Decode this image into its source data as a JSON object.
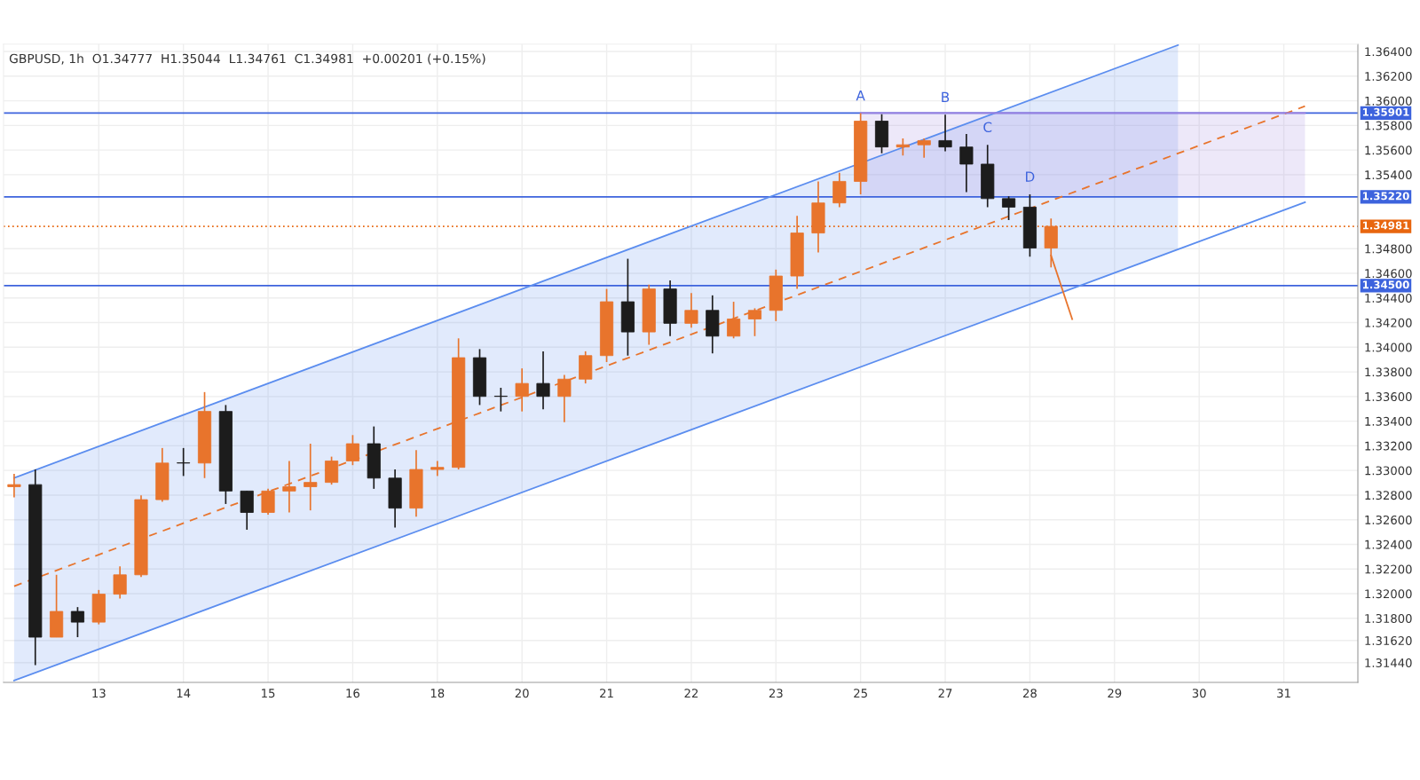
{
  "chart_data": {
    "type": "candlestick",
    "title": "GBPUSD, 1h  O1.34777  H1.35044  L1.34761  C1.34981  +0.00201 (+0.15%)",
    "categories": [
      null,
      null,
      null,
      null,
      "13",
      null,
      null,
      null,
      "14",
      null,
      null,
      null,
      "15",
      null,
      null,
      null,
      "16",
      null,
      null,
      null,
      "18",
      null,
      null,
      null,
      "20",
      null,
      null,
      null,
      "21",
      null,
      null,
      null,
      "22",
      null,
      null,
      null,
      "23",
      null,
      null,
      null,
      "25",
      null,
      null,
      null,
      "27",
      null,
      null,
      null,
      "28",
      null,
      null,
      null,
      "29",
      null,
      null,
      null,
      "30",
      null,
      null,
      null,
      "31",
      null,
      null,
      null
    ],
    "ohlc": [
      [
        1.32868,
        1.32973,
        1.32781,
        1.32885
      ],
      [
        1.32885,
        1.33008,
        1.3142,
        1.31647
      ],
      [
        1.31647,
        1.32153,
        1.31647,
        1.31856
      ],
      [
        1.31856,
        1.31891,
        1.31647,
        1.31769
      ],
      [
        1.31769,
        1.3203,
        1.31751,
        1.31996
      ],
      [
        1.31996,
        1.32222,
        1.31961,
        1.32153
      ],
      [
        1.32153,
        1.32798,
        1.32135,
        1.32763
      ],
      [
        1.32763,
        1.33182,
        1.32746,
        1.3306
      ],
      [
        1.3306,
        1.33182,
        1.32955,
        1.3306
      ],
      [
        1.3306,
        1.33636,
        1.32938,
        1.33479
      ],
      [
        1.33479,
        1.33531,
        1.32728,
        1.32833
      ],
      [
        1.32833,
        1.32833,
        1.32519,
        1.32659
      ],
      [
        1.32659,
        1.32851,
        1.32641,
        1.32833
      ],
      [
        1.32833,
        1.33077,
        1.32659,
        1.32868
      ],
      [
        1.32868,
        1.33217,
        1.32676,
        1.32903
      ],
      [
        1.32903,
        1.33112,
        1.32885,
        1.33077
      ],
      [
        1.33077,
        1.33287,
        1.33043,
        1.33217
      ],
      [
        1.33217,
        1.33357,
        1.32851,
        1.32938
      ],
      [
        1.32938,
        1.33008,
        1.32537,
        1.32694
      ],
      [
        1.32694,
        1.33165,
        1.32624,
        1.33008
      ],
      [
        1.33008,
        1.33077,
        1.32955,
        1.33025
      ],
      [
        1.33025,
        1.34072,
        1.33008,
        1.33915
      ],
      [
        1.33915,
        1.33985,
        1.33531,
        1.33601
      ],
      [
        1.33601,
        1.33671,
        1.33479,
        1.33601
      ],
      [
        1.33601,
        1.33828,
        1.33479,
        1.33706
      ],
      [
        1.33706,
        1.33967,
        1.33496,
        1.33601
      ],
      [
        1.33601,
        1.33775,
        1.33392,
        1.33741
      ],
      [
        1.33741,
        1.33967,
        1.33706,
        1.33932
      ],
      [
        1.33932,
        1.34473,
        1.3388,
        1.34369
      ],
      [
        1.34369,
        1.34718,
        1.33932,
        1.34124
      ],
      [
        1.34124,
        1.34508,
        1.3402,
        1.34473
      ],
      [
        1.34473,
        1.34543,
        1.3409,
        1.34194
      ],
      [
        1.34194,
        1.34439,
        1.34159,
        1.34299
      ],
      [
        1.34299,
        1.34421,
        1.3395,
        1.3409
      ],
      [
        1.3409,
        1.34369,
        1.34072,
        1.34229
      ],
      [
        1.34229,
        1.34316,
        1.3409,
        1.34299
      ],
      [
        1.34299,
        1.3463,
        1.34212,
        1.34578
      ],
      [
        1.34578,
        1.35067,
        1.34473,
        1.34927
      ],
      [
        1.34927,
        1.35346,
        1.3477,
        1.35171
      ],
      [
        1.35171,
        1.35416,
        1.35137,
        1.35346
      ],
      [
        1.35346,
        1.359,
        1.35241,
        1.35835
      ],
      [
        1.35835,
        1.3589,
        1.35573,
        1.35625
      ],
      [
        1.35625,
        1.35695,
        1.35555,
        1.35643
      ],
      [
        1.35643,
        1.35695,
        1.35538,
        1.35677
      ],
      [
        1.35677,
        1.35887,
        1.3559,
        1.35625
      ],
      [
        1.35625,
        1.3573,
        1.35259,
        1.35486
      ],
      [
        1.35486,
        1.35643,
        1.35137,
        1.35206
      ],
      [
        1.35206,
        1.35224,
        1.35032,
        1.35137
      ],
      [
        1.35137,
        1.35241,
        1.34735,
        1.34805
      ],
      [
        1.34805,
        1.35044,
        1.34648,
        1.34981
      ],
      null,
      null,
      null,
      null,
      null,
      null,
      null,
      null,
      null,
      null,
      null,
      null,
      null,
      null
    ],
    "colors": [
      "#e8742c",
      "#1c1c1c",
      "#e8742c",
      "#1c1c1c",
      "#e8742c",
      "#e8742c",
      "#e8742c",
      "#e8742c",
      "#1c1c1c",
      "#e8742c",
      "#1c1c1c",
      "#1c1c1c",
      "#e8742c",
      "#e8742c",
      "#e8742c",
      "#e8742c",
      "#e8742c",
      "#1c1c1c",
      "#1c1c1c",
      "#e8742c",
      "#e8742c",
      "#e8742c",
      "#1c1c1c",
      "#1c1c1c",
      "#e8742c",
      "#1c1c1c",
      "#e8742c",
      "#e8742c",
      "#e8742c",
      "#1c1c1c",
      "#e8742c",
      "#1c1c1c",
      "#e8742c",
      "#1c1c1c",
      "#e8742c",
      "#e8742c",
      "#e8742c",
      "#e8742c",
      "#e8742c",
      "#e8742c",
      "#e8742c",
      "#1c1c1c",
      "#e8742c",
      "#e8742c",
      "#1c1c1c",
      "#1c1c1c",
      "#1c1c1c",
      "#1c1c1c",
      "#1c1c1c",
      "#e8742c",
      null,
      null,
      null,
      null,
      null,
      null,
      null,
      null,
      null,
      null,
      null,
      null,
      null,
      null
    ],
    "value_labels": [
      null,
      null,
      null,
      null,
      null,
      null,
      null,
      null,
      null,
      null,
      null,
      null,
      null,
      null,
      null,
      null,
      null,
      null,
      null,
      null,
      null,
      null,
      null,
      null,
      null,
      null,
      null,
      null,
      null,
      null,
      null,
      null,
      null,
      null,
      null,
      null,
      null,
      null,
      null,
      null,
      "A",
      null,
      null,
      null,
      "B",
      null,
      "C",
      null,
      "D",
      null,
      null,
      null,
      null,
      null,
      null,
      null,
      null,
      null,
      null,
      null,
      null,
      null,
      null,
      null
    ],
    "series": [
      {
        "type": "line",
        "color": "#5b8def",
        "values": [
          1.3294,
          null,
          null,
          null,
          null,
          null,
          null,
          null,
          null,
          null,
          null,
          null,
          null,
          null,
          null,
          null,
          null,
          null,
          null,
          null,
          null,
          null,
          null,
          null,
          null,
          null,
          null,
          null,
          null,
          null,
          null,
          null,
          null,
          null,
          null,
          null,
          null,
          null,
          null,
          null,
          null,
          null,
          null,
          null,
          null,
          null,
          null,
          null,
          null,
          null,
          null,
          null,
          null,
          null,
          null,
          1.36452,
          null,
          null,
          null,
          null,
          null,
          null,
          null,
          null
        ],
        "upper": [
          1.3294,
          null,
          null,
          null,
          null,
          null,
          null,
          null,
          null,
          null,
          null,
          null,
          null,
          null,
          null,
          null,
          null,
          null,
          null,
          null,
          null,
          null,
          null,
          null,
          null,
          null,
          null,
          null,
          null,
          null,
          null,
          null,
          null,
          null,
          null,
          null,
          null,
          null,
          null,
          null,
          null,
          null,
          null,
          null,
          null,
          null,
          null,
          null,
          null,
          null,
          null,
          null,
          null,
          null,
          null,
          1.36452,
          null,
          null,
          null,
          null,
          null,
          null,
          null,
          null
        ],
        "lower": [
          1.31295,
          null,
          null,
          null,
          null,
          null,
          null,
          null,
          null,
          null,
          null,
          null,
          null,
          null,
          null,
          null,
          null,
          null,
          null,
          null,
          null,
          null,
          null,
          null,
          null,
          null,
          null,
          null,
          null,
          null,
          null,
          null,
          null,
          null,
          null,
          null,
          null,
          null,
          null,
          null,
          null,
          null,
          null,
          null,
          null,
          null,
          null,
          null,
          null,
          null,
          null,
          null,
          null,
          null,
          null,
          1.34795,
          null,
          null,
          null,
          null,
          null,
          null,
          null,
          null
        ]
      },
      {
        "type": "line",
        "color": "#5b8def",
        "values": [
          1.31295,
          null,
          null,
          null,
          null,
          null,
          null,
          null,
          null,
          null,
          null,
          null,
          null,
          null,
          null,
          null,
          null,
          null,
          null,
          null,
          null,
          null,
          null,
          null,
          null,
          null,
          null,
          null,
          null,
          null,
          null,
          null,
          null,
          null,
          null,
          null,
          null,
          null,
          null,
          null,
          null,
          null,
          null,
          null,
          null,
          null,
          null,
          null,
          null,
          null,
          null,
          null,
          null,
          null,
          null,
          null,
          null,
          null,
          null,
          null,
          null,
          1.35176,
          null,
          null
        ]
      },
      {
        "type": "line",
        "color": "#e8742c",
        "line_style": "dashed",
        "values": [
          1.32061,
          null,
          null,
          null,
          null,
          null,
          null,
          null,
          null,
          null,
          null,
          null,
          null,
          null,
          null,
          null,
          null,
          null,
          null,
          null,
          null,
          null,
          null,
          null,
          null,
          null,
          null,
          null,
          null,
          null,
          null,
          null,
          null,
          null,
          null,
          null,
          null,
          null,
          null,
          null,
          null,
          null,
          null,
          null,
          null,
          null,
          null,
          null,
          null,
          null,
          null,
          null,
          null,
          null,
          null,
          null,
          null,
          null,
          null,
          null,
          null,
          1.35956,
          null,
          null
        ]
      },
      {
        "type": "line",
        "color": "#9b7fe0",
        "upper": [
          null,
          null,
          null,
          null,
          null,
          null,
          null,
          null,
          null,
          null,
          null,
          null,
          null,
          null,
          null,
          null,
          null,
          null,
          null,
          null,
          null,
          null,
          null,
          null,
          null,
          null,
          null,
          null,
          null,
          null,
          null,
          null,
          null,
          null,
          null,
          null,
          null,
          null,
          null,
          null,
          1.35901,
          null,
          null,
          null,
          null,
          null,
          null,
          null,
          null,
          null,
          null,
          null,
          null,
          null,
          null,
          null,
          null,
          null,
          null,
          null,
          null,
          1.35901,
          null,
          null
        ],
        "values": [
          null,
          null,
          null,
          null,
          null,
          null,
          null,
          null,
          null,
          null,
          null,
          null,
          null,
          null,
          null,
          null,
          null,
          null,
          null,
          null,
          null,
          null,
          null,
          null,
          null,
          null,
          null,
          null,
          null,
          null,
          null,
          null,
          null,
          null,
          null,
          null,
          null,
          null,
          null,
          null,
          1.35901,
          null,
          null,
          null,
          null,
          null,
          null,
          null,
          null,
          null,
          null,
          null,
          null,
          null,
          null,
          null,
          null,
          null,
          null,
          null,
          null,
          1.35901,
          null,
          null
        ],
        "lower": [
          null,
          null,
          null,
          null,
          null,
          null,
          null,
          null,
          null,
          null,
          null,
          null,
          null,
          null,
          null,
          null,
          null,
          null,
          null,
          null,
          null,
          null,
          null,
          null,
          null,
          null,
          null,
          null,
          null,
          null,
          null,
          null,
          null,
          null,
          null,
          null,
          null,
          null,
          null,
          null,
          1.3522,
          null,
          null,
          null,
          null,
          null,
          null,
          null,
          null,
          null,
          null,
          null,
          null,
          null,
          null,
          null,
          null,
          null,
          null,
          null,
          null,
          1.3522,
          null,
          null
        ]
      },
      {
        "type": "line",
        "color": "#e8742c",
        "values": [
          null,
          null,
          null,
          null,
          null,
          null,
          null,
          null,
          null,
          null,
          null,
          null,
          null,
          null,
          null,
          null,
          null,
          null,
          null,
          null,
          null,
          null,
          null,
          null,
          null,
          null,
          null,
          null,
          null,
          null,
          null,
          null,
          null,
          null,
          null,
          null,
          null,
          null,
          null,
          null,
          null,
          null,
          null,
          null,
          null,
          null,
          null,
          null,
          null,
          1.34745,
          1.34228,
          null,
          null,
          null,
          null,
          null,
          null,
          null,
          null,
          null,
          null,
          null,
          null,
          null
        ]
      }
    ],
    "ref_lines": [
      {
        "axis": "y",
        "value": 1.35901,
        "label": "1.35901",
        "color": "#3d63dd"
      },
      {
        "axis": "y",
        "value": 1.3522,
        "label": "1.35220",
        "color": "#3d63dd"
      },
      {
        "axis": "y",
        "value": 1.34981,
        "label": "1.34981",
        "color": "#e8660f",
        "line_style": "dotted"
      },
      {
        "axis": "y",
        "value": 1.345,
        "label": "1.34500",
        "color": "#3d63dd"
      }
    ],
    "ylim": [
      1.3128,
      1.3646
    ],
    "yticks": [
      {
        "value": 1.364,
        "label": "1.36400"
      },
      {
        "value": 1.362,
        "label": "1.36200"
      },
      {
        "value": 1.36,
        "label": "1.36000"
      },
      {
        "value": 1.358,
        "label": "1.35800"
      },
      {
        "value": 1.356,
        "label": "1.35600"
      },
      {
        "value": 1.354,
        "label": "1.35400"
      },
      {
        "value": 1.348,
        "label": "1.34800"
      },
      {
        "value": 1.346,
        "label": "1.34600"
      },
      {
        "value": 1.344,
        "label": "1.34400"
      },
      {
        "value": 1.342,
        "label": "1.34200"
      },
      {
        "value": 1.34,
        "label": "1.34000"
      },
      {
        "value": 1.338,
        "label": "1.33800"
      },
      {
        "value": 1.336,
        "label": "1.33600"
      },
      {
        "value": 1.334,
        "label": "1.33400"
      },
      {
        "value": 1.332,
        "label": "1.33200"
      },
      {
        "value": 1.33,
        "label": "1.33000"
      },
      {
        "value": 1.328,
        "label": "1.32800"
      },
      {
        "value": 1.326,
        "label": "1.32600"
      },
      {
        "value": 1.324,
        "label": "1.32400"
      },
      {
        "value": 1.322,
        "label": "1.32200"
      },
      {
        "value": 1.32,
        "label": "1.32000"
      },
      {
        "value": 1.318,
        "label": "1.31800"
      },
      {
        "value": 1.3162,
        "label": "1.31620"
      },
      {
        "value": 1.3144,
        "label": "1.31440"
      }
    ],
    "grid": true
  }
}
